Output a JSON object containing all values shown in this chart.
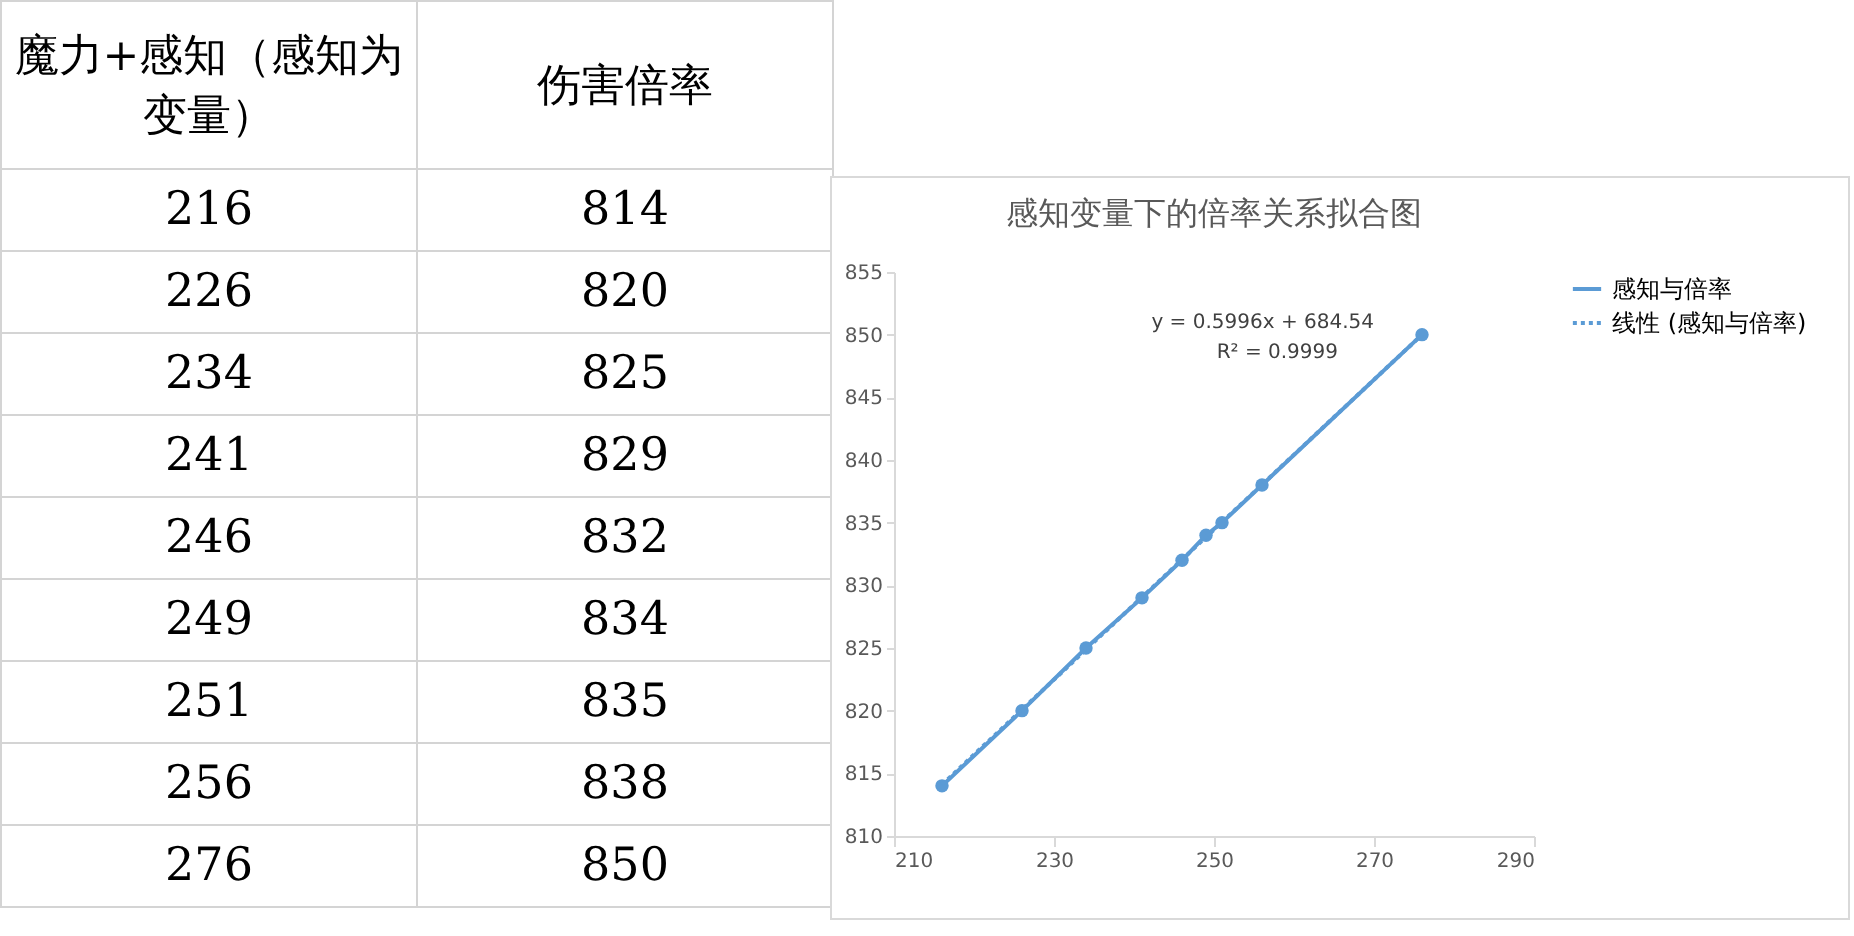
{
  "chart_data": [
    {
      "type": "other",
      "annotations": [
        "魔力+感知（感知为变量）",
        "伤害倍率",
        "216",
        "814",
        "226",
        "820",
        "234",
        "825",
        "241",
        "829",
        "246",
        "832",
        "249",
        "834",
        "251",
        "835",
        "256",
        "838",
        "276",
        "850"
      ]
    },
    {
      "type": "line",
      "title": "感知变量下的倍率关系拟合图",
      "x": [
        216,
        226,
        234,
        241,
        246,
        249,
        251,
        256,
        276
      ],
      "series": [
        {
          "name": "感知与倍率",
          "color": "#5b9bd5",
          "marker": "circle",
          "line_style": "solid",
          "values": [
            814,
            820,
            825,
            829,
            832,
            834,
            835,
            838,
            850
          ]
        },
        {
          "name": "线性 (感知与倍率)",
          "color": "#5b9bd5",
          "line_style": "dotted",
          "x": [
            216,
            276
          ],
          "values": [
            814.1,
            850.0
          ]
        }
      ],
      "xlim": [
        210,
        290
      ],
      "xticks": [
        210,
        230,
        250,
        270,
        290
      ],
      "ylim": [
        810,
        855
      ],
      "yticks": [
        810,
        815,
        820,
        825,
        830,
        835,
        840,
        845,
        850,
        855
      ],
      "grid": false,
      "legend": "right",
      "annotations": [
        "y = 0.5996x + 684.54",
        "R² = 0.9999"
      ]
    }
  ]
}
